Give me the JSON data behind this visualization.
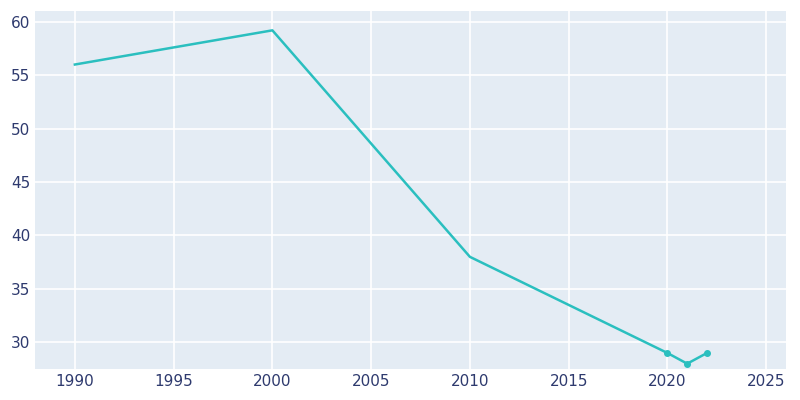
{
  "years": [
    1990,
    2000,
    2010,
    2020,
    2021,
    2022
  ],
  "population": [
    56.0,
    59.2,
    38.0,
    29.0,
    28.0,
    29.0
  ],
  "line_color": "#2ABFBF",
  "marker_size": 4,
  "ax_bg_color": "#E4ECF4",
  "fig_bg_color": "#FFFFFF",
  "grid_color": "#FFFFFF",
  "tick_color": "#2E3A6E",
  "xlim": [
    1988,
    2026
  ],
  "ylim": [
    27.5,
    61
  ],
  "xticks": [
    1990,
    1995,
    2000,
    2005,
    2010,
    2015,
    2020,
    2025
  ],
  "yticks": [
    30,
    35,
    40,
    45,
    50,
    55,
    60
  ],
  "line_width": 1.8,
  "tick_fontsize": 11
}
